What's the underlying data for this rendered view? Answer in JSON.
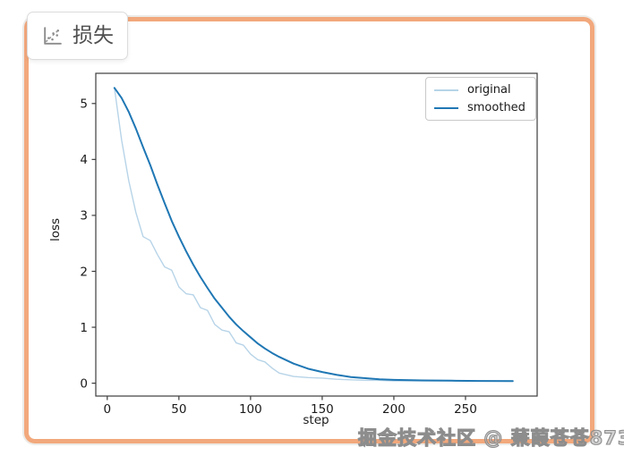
{
  "tab": {
    "label": "损失"
  },
  "watermark": {
    "text": "掘金技术社区 @ 蒹葭苍苍873"
  },
  "panel": {
    "border_color": "#f2a87c",
    "background": "#ffffff"
  },
  "chart_data": {
    "type": "line",
    "title": "",
    "xlabel": "step",
    "ylabel": "loss",
    "xlim": [
      -8,
      300
    ],
    "ylim": [
      -0.23,
      5.54
    ],
    "x_ticks": [
      0,
      50,
      100,
      150,
      200,
      250
    ],
    "y_ticks": [
      0,
      1,
      2,
      3,
      4,
      5
    ],
    "grid": false,
    "legend_position": "upper right",
    "axis_color": "#3c3c3c",
    "tick_label_color": "#1a1a1a",
    "x": [
      5,
      10,
      15,
      20,
      25,
      30,
      35,
      40,
      45,
      50,
      55,
      60,
      65,
      70,
      75,
      80,
      85,
      90,
      95,
      100,
      105,
      110,
      115,
      120,
      130,
      140,
      150,
      160,
      170,
      180,
      190,
      200,
      220,
      240,
      260,
      283
    ],
    "series": [
      {
        "name": "original",
        "color": "#b7d4e8",
        "line_width": 1.4,
        "values": [
          5.28,
          4.35,
          3.62,
          3.05,
          2.62,
          2.55,
          2.3,
          2.08,
          2.02,
          1.72,
          1.6,
          1.58,
          1.35,
          1.3,
          1.05,
          0.95,
          0.92,
          0.72,
          0.68,
          0.52,
          0.42,
          0.38,
          0.27,
          0.18,
          0.12,
          0.1,
          0.09,
          0.07,
          0.06,
          0.05,
          0.05,
          0.04,
          0.04,
          0.04,
          0.04,
          0.04
        ]
      },
      {
        "name": "smoothed",
        "color": "#1f77b4",
        "line_width": 2,
        "values": [
          5.28,
          5.1,
          4.85,
          4.55,
          4.22,
          3.9,
          3.55,
          3.22,
          2.9,
          2.62,
          2.36,
          2.12,
          1.9,
          1.7,
          1.51,
          1.35,
          1.19,
          1.05,
          0.93,
          0.82,
          0.71,
          0.62,
          0.54,
          0.47,
          0.35,
          0.26,
          0.2,
          0.15,
          0.11,
          0.09,
          0.07,
          0.06,
          0.05,
          0.045,
          0.04,
          0.038
        ]
      }
    ]
  }
}
